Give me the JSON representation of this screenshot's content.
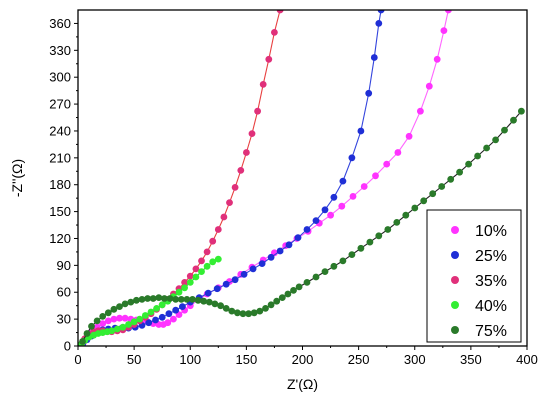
{
  "chart_data": {
    "type": "scatter",
    "xlabel": "Z'(Ω)",
    "ylabel": "-Z''(Ω)",
    "xlim": [
      0,
      400
    ],
    "ylim": [
      0,
      375
    ],
    "xticks": [
      0,
      50,
      100,
      150,
      200,
      250,
      300,
      350,
      400
    ],
    "yticks": [
      0,
      30,
      60,
      90,
      120,
      150,
      180,
      210,
      240,
      270,
      300,
      330,
      360
    ],
    "grid": false,
    "legend_position": "bottom-right",
    "series": [
      {
        "name": "10%",
        "color": "#ff33ff",
        "line_color": "#ff66ff",
        "points": [
          [
            5,
            4
          ],
          [
            8,
            10
          ],
          [
            12,
            16
          ],
          [
            17,
            21
          ],
          [
            22,
            25
          ],
          [
            27,
            28
          ],
          [
            32,
            30
          ],
          [
            37,
            31
          ],
          [
            42,
            31
          ],
          [
            47,
            30
          ],
          [
            52,
            29
          ],
          [
            57,
            28
          ],
          [
            62,
            27
          ],
          [
            67,
            25
          ],
          [
            72,
            24
          ],
          [
            76,
            24
          ],
          [
            80,
            26
          ],
          [
            85,
            30
          ],
          [
            90,
            35
          ],
          [
            95,
            40
          ],
          [
            100,
            45
          ],
          [
            108,
            52
          ],
          [
            115,
            58
          ],
          [
            125,
            65
          ],
          [
            135,
            72
          ],
          [
            145,
            80
          ],
          [
            155,
            88
          ],
          [
            165,
            96
          ],
          [
            175,
            104
          ],
          [
            185,
            112
          ],
          [
            195,
            120
          ],
          [
            205,
            128
          ],
          [
            215,
            137
          ],
          [
            225,
            146
          ],
          [
            235,
            156
          ],
          [
            245,
            167
          ],
          [
            255,
            178
          ],
          [
            265,
            190
          ],
          [
            275,
            203
          ],
          [
            285,
            216
          ],
          [
            295,
            234
          ],
          [
            305,
            262
          ],
          [
            313,
            290
          ],
          [
            320,
            320
          ],
          [
            326,
            352
          ],
          [
            330,
            375
          ]
        ]
      },
      {
        "name": "25%",
        "color": "#1f2fd6",
        "line_color": "#3344dd",
        "points": [
          [
            4,
            2
          ],
          [
            8,
            7
          ],
          [
            12,
            11
          ],
          [
            17,
            15
          ],
          [
            22,
            18
          ],
          [
            27,
            19
          ],
          [
            33,
            20
          ],
          [
            39,
            20
          ],
          [
            45,
            20
          ],
          [
            51,
            21
          ],
          [
            57,
            23
          ],
          [
            63,
            26
          ],
          [
            69,
            29
          ],
          [
            75,
            32
          ],
          [
            81,
            36
          ],
          [
            87,
            40
          ],
          [
            93,
            44
          ],
          [
            100,
            49
          ],
          [
            108,
            54
          ],
          [
            116,
            59
          ],
          [
            124,
            64
          ],
          [
            132,
            69
          ],
          [
            140,
            74
          ],
          [
            148,
            80
          ],
          [
            156,
            86
          ],
          [
            164,
            92
          ],
          [
            172,
            99
          ],
          [
            180,
            106
          ],
          [
            188,
            113
          ],
          [
            196,
            121
          ],
          [
            204,
            130
          ],
          [
            212,
            140
          ],
          [
            220,
            152
          ],
          [
            228,
            166
          ],
          [
            236,
            184
          ],
          [
            244,
            210
          ],
          [
            252,
            240
          ],
          [
            259,
            282
          ],
          [
            264,
            322
          ],
          [
            268,
            360
          ],
          [
            270,
            375
          ]
        ]
      },
      {
        "name": "35%",
        "color": "#e0307a",
        "line_color": "#e84040",
        "points": [
          [
            3,
            2
          ],
          [
            6,
            8
          ],
          [
            10,
            13
          ],
          [
            14,
            16
          ],
          [
            18,
            17
          ],
          [
            22,
            17
          ],
          [
            26,
            16
          ],
          [
            30,
            16
          ],
          [
            35,
            17
          ],
          [
            40,
            18
          ],
          [
            45,
            21
          ],
          [
            50,
            24
          ],
          [
            55,
            28
          ],
          [
            60,
            32
          ],
          [
            65,
            36
          ],
          [
            70,
            41
          ],
          [
            75,
            46
          ],
          [
            80,
            52
          ],
          [
            85,
            58
          ],
          [
            90,
            64
          ],
          [
            95,
            71
          ],
          [
            100,
            78
          ],
          [
            105,
            86
          ],
          [
            110,
            95
          ],
          [
            115,
            105
          ],
          [
            120,
            117
          ],
          [
            125,
            130
          ],
          [
            130,
            144
          ],
          [
            135,
            160
          ],
          [
            140,
            177
          ],
          [
            145,
            196
          ],
          [
            150,
            216
          ],
          [
            155,
            237
          ],
          [
            160,
            262
          ],
          [
            165,
            292
          ],
          [
            170,
            320
          ],
          [
            175,
            350
          ],
          [
            180,
            375
          ]
        ]
      },
      {
        "name": "40%",
        "color": "#33ee33",
        "line_color": "#22cc22",
        "points": [
          [
            3,
            2
          ],
          [
            6,
            6
          ],
          [
            10,
            10
          ],
          [
            14,
            12
          ],
          [
            18,
            14
          ],
          [
            22,
            15
          ],
          [
            26,
            16
          ],
          [
            30,
            17
          ],
          [
            35,
            19
          ],
          [
            40,
            21
          ],
          [
            45,
            24
          ],
          [
            50,
            27
          ],
          [
            55,
            30
          ],
          [
            60,
            34
          ],
          [
            65,
            38
          ],
          [
            70,
            42
          ],
          [
            75,
            46
          ],
          [
            80,
            50
          ],
          [
            85,
            55
          ],
          [
            90,
            60
          ],
          [
            95,
            65
          ],
          [
            100,
            71
          ],
          [
            105,
            77
          ],
          [
            110,
            83
          ],
          [
            115,
            89
          ],
          [
            120,
            94
          ],
          [
            125,
            97
          ]
        ]
      },
      {
        "name": "75%",
        "color": "#2a7a2a",
        "line_color": "#222222",
        "points": [
          [
            4,
            5
          ],
          [
            8,
            14
          ],
          [
            12,
            22
          ],
          [
            17,
            28
          ],
          [
            22,
            33
          ],
          [
            27,
            37
          ],
          [
            32,
            41
          ],
          [
            37,
            44
          ],
          [
            42,
            47
          ],
          [
            47,
            49
          ],
          [
            52,
            51
          ],
          [
            57,
            52
          ],
          [
            62,
            53
          ],
          [
            67,
            53
          ],
          [
            72,
            54
          ],
          [
            77,
            53
          ],
          [
            82,
            53
          ],
          [
            87,
            52
          ],
          [
            92,
            52
          ],
          [
            97,
            52
          ],
          [
            102,
            52
          ],
          [
            107,
            51
          ],
          [
            112,
            50
          ],
          [
            117,
            49
          ],
          [
            122,
            47
          ],
          [
            127,
            45
          ],
          [
            132,
            42
          ],
          [
            137,
            39
          ],
          [
            142,
            37
          ],
          [
            147,
            36
          ],
          [
            152,
            36
          ],
          [
            157,
            37
          ],
          [
            162,
            39
          ],
          [
            167,
            42
          ],
          [
            172,
            46
          ],
          [
            177,
            50
          ],
          [
            182,
            54
          ],
          [
            187,
            58
          ],
          [
            192,
            62
          ],
          [
            197,
            66
          ],
          [
            204,
            71
          ],
          [
            212,
            77
          ],
          [
            220,
            83
          ],
          [
            228,
            89
          ],
          [
            236,
            95
          ],
          [
            244,
            102
          ],
          [
            252,
            109
          ],
          [
            260,
            116
          ],
          [
            268,
            123
          ],
          [
            276,
            130
          ],
          [
            284,
            138
          ],
          [
            292,
            146
          ],
          [
            300,
            154
          ],
          [
            308,
            162
          ],
          [
            316,
            170
          ],
          [
            324,
            178
          ],
          [
            332,
            186
          ],
          [
            340,
            194
          ],
          [
            348,
            203
          ],
          [
            356,
            212
          ],
          [
            364,
            221
          ],
          [
            372,
            230
          ],
          [
            380,
            241
          ],
          [
            388,
            252
          ],
          [
            395,
            262
          ]
        ]
      }
    ]
  }
}
